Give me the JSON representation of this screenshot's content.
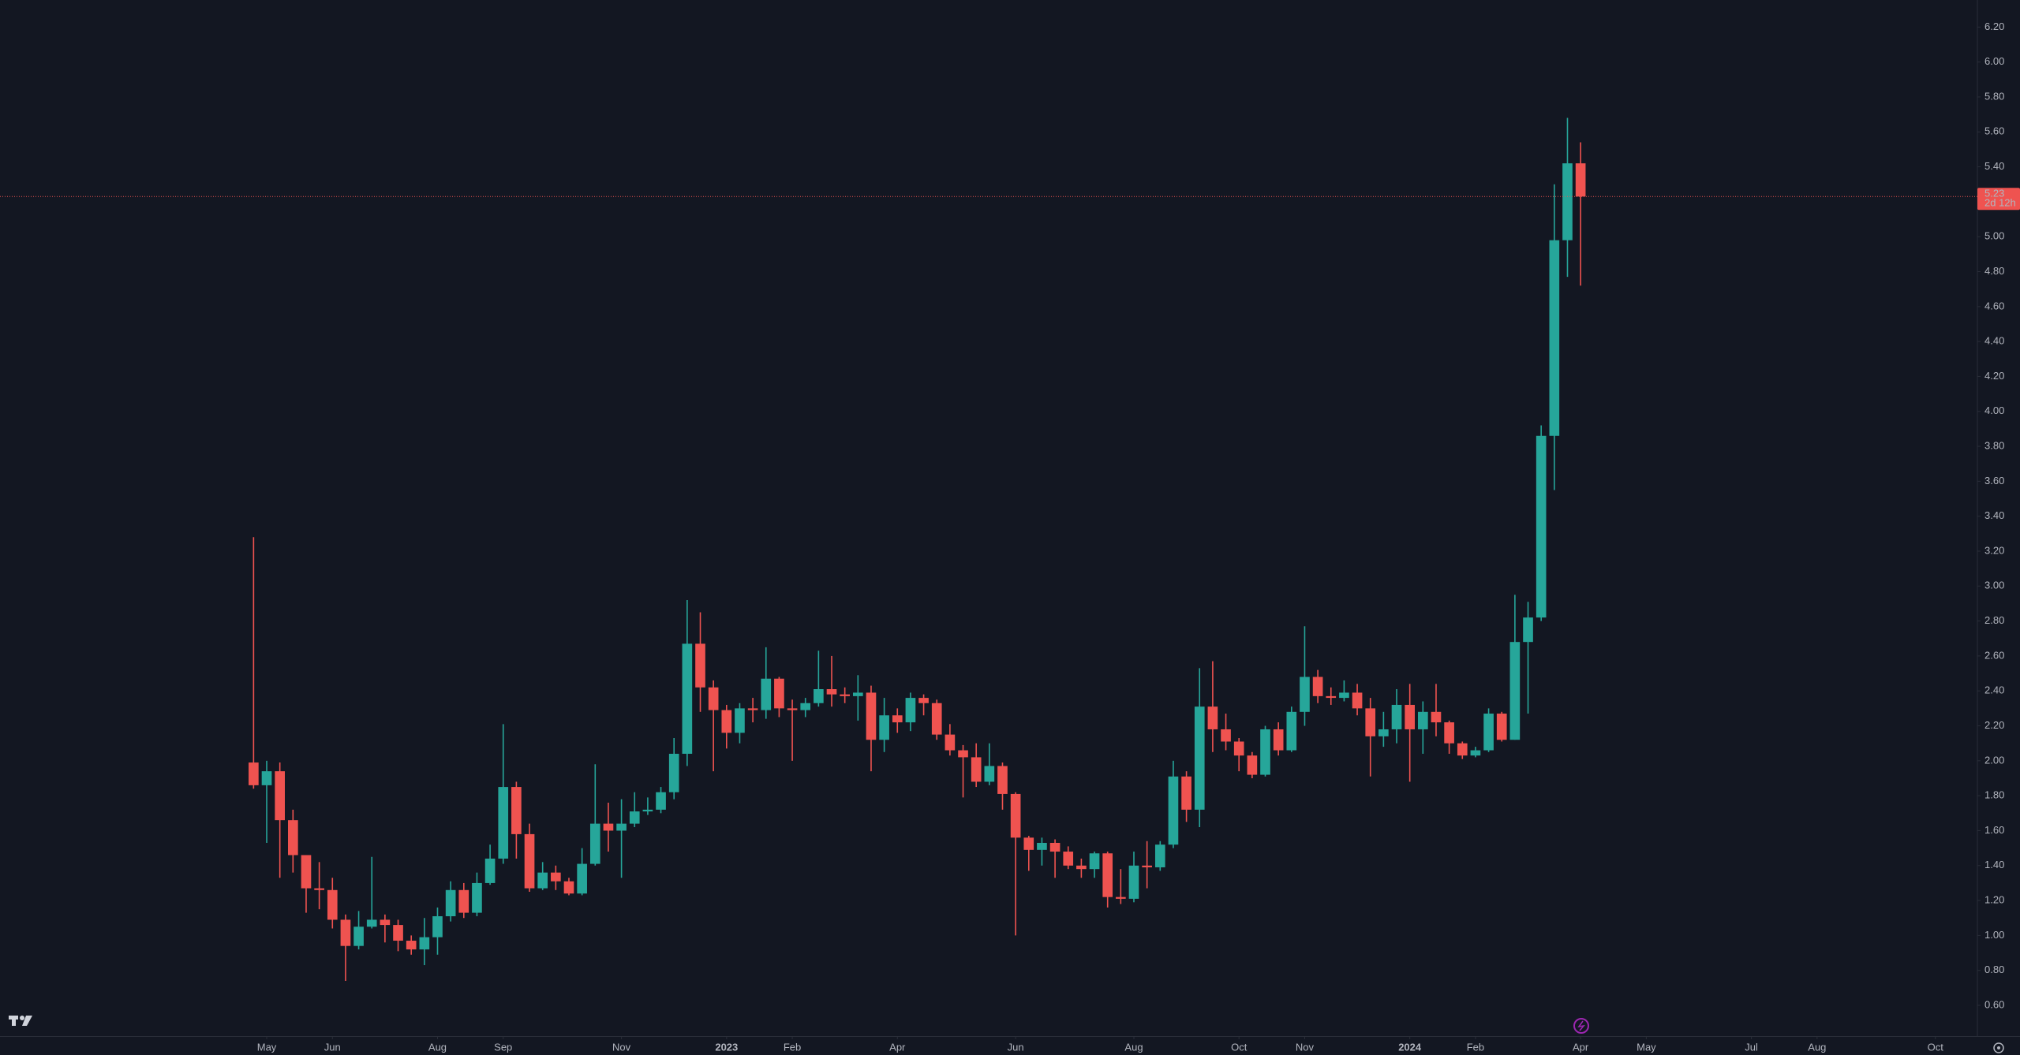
{
  "chart_data": {
    "type": "candlestick",
    "open": [
      1.99,
      1.86,
      1.94,
      1.66,
      1.46,
      1.27,
      1.26,
      1.09,
      0.94,
      1.05,
      1.09,
      1.06,
      0.97,
      0.92,
      0.99,
      1.11,
      1.26,
      1.13,
      1.3,
      1.44,
      1.85,
      1.58,
      1.27,
      1.36,
      1.31,
      1.24,
      1.41,
      1.64,
      1.6,
      1.64,
      1.71,
      1.72,
      1.82,
      2.04,
      2.67,
      2.42,
      2.29,
      2.16,
      2.3,
      2.29,
      2.47,
      2.3,
      2.29,
      2.33,
      2.41,
      2.38,
      2.37,
      2.39,
      2.12,
      2.26,
      2.22,
      2.36,
      2.33,
      2.15,
      2.06,
      2.02,
      1.88,
      1.97,
      1.81,
      1.56,
      1.49,
      1.53,
      1.48,
      1.4,
      1.38,
      1.47,
      1.22,
      1.21,
      1.4,
      1.39,
      1.52,
      1.91,
      1.72,
      2.31,
      2.18,
      2.11,
      2.03,
      1.92,
      2.18,
      2.06,
      2.28,
      2.48,
      2.37,
      2.36,
      2.39,
      2.3,
      2.14,
      2.18,
      2.32,
      2.18,
      2.28,
      2.22,
      2.1,
      2.03,
      2.06,
      2.27,
      2.12,
      2.68,
      2.82,
      3.86,
      4.98,
      5.42
    ],
    "high": [
      3.28,
      2.0,
      1.99,
      1.72,
      1.46,
      1.42,
      1.33,
      1.12,
      1.14,
      1.45,
      1.12,
      1.09,
      1.0,
      1.1,
      1.16,
      1.31,
      1.3,
      1.36,
      1.52,
      2.21,
      1.88,
      1.64,
      1.42,
      1.4,
      1.33,
      1.5,
      1.98,
      1.76,
      1.78,
      1.82,
      1.79,
      1.85,
      2.13,
      2.92,
      2.85,
      2.46,
      2.32,
      2.33,
      2.36,
      2.65,
      2.48,
      2.35,
      2.36,
      2.63,
      2.6,
      2.42,
      2.49,
      2.43,
      2.36,
      2.3,
      2.39,
      2.38,
      2.35,
      2.21,
      2.09,
      2.1,
      2.1,
      1.99,
      1.82,
      1.57,
      1.56,
      1.55,
      1.51,
      1.44,
      1.48,
      1.48,
      1.38,
      1.48,
      1.54,
      1.54,
      2.0,
      1.94,
      2.53,
      2.57,
      2.27,
      2.13,
      2.05,
      2.2,
      2.22,
      2.31,
      2.77,
      2.52,
      2.42,
      2.46,
      2.44,
      2.36,
      2.28,
      2.41,
      2.44,
      2.34,
      2.44,
      2.23,
      2.11,
      2.08,
      2.3,
      2.28,
      2.95,
      2.91,
      3.92,
      5.3,
      5.68,
      5.54
    ],
    "low": [
      1.84,
      1.53,
      1.33,
      1.36,
      1.13,
      1.15,
      1.04,
      0.74,
      0.92,
      1.04,
      0.96,
      0.91,
      0.89,
      0.83,
      0.89,
      1.08,
      1.1,
      1.11,
      1.29,
      1.41,
      1.44,
      1.25,
      1.26,
      1.26,
      1.23,
      1.23,
      1.4,
      1.48,
      1.33,
      1.62,
      1.69,
      1.7,
      1.78,
      1.97,
      2.28,
      1.94,
      2.07,
      2.1,
      2.22,
      2.24,
      2.25,
      2.0,
      2.25,
      2.31,
      2.31,
      2.33,
      2.23,
      1.94,
      2.05,
      2.16,
      2.17,
      2.26,
      2.12,
      2.03,
      1.79,
      1.85,
      1.86,
      1.72,
      1.0,
      1.37,
      1.4,
      1.33,
      1.38,
      1.33,
      1.33,
      1.16,
      1.18,
      1.19,
      1.27,
      1.37,
      1.5,
      1.65,
      1.62,
      2.05,
      2.06,
      1.94,
      1.9,
      1.91,
      2.03,
      2.05,
      2.2,
      2.33,
      2.32,
      2.34,
      2.26,
      1.91,
      2.08,
      2.1,
      1.88,
      2.04,
      2.14,
      2.04,
      2.01,
      2.02,
      2.05,
      2.11,
      2.12,
      2.27,
      2.8,
      3.55,
      4.77,
      4.72
    ],
    "close": [
      1.86,
      1.94,
      1.66,
      1.46,
      1.27,
      1.26,
      1.09,
      0.94,
      1.05,
      1.09,
      1.06,
      0.97,
      0.92,
      0.99,
      1.11,
      1.26,
      1.13,
      1.3,
      1.44,
      1.85,
      1.58,
      1.27,
      1.36,
      1.31,
      1.24,
      1.41,
      1.64,
      1.6,
      1.64,
      1.71,
      1.72,
      1.82,
      2.04,
      2.67,
      2.42,
      2.29,
      2.16,
      2.3,
      2.29,
      2.47,
      2.3,
      2.29,
      2.33,
      2.41,
      2.38,
      2.37,
      2.39,
      2.12,
      2.26,
      2.22,
      2.36,
      2.33,
      2.15,
      2.06,
      2.02,
      1.88,
      1.97,
      1.81,
      1.56,
      1.49,
      1.53,
      1.48,
      1.4,
      1.38,
      1.47,
      1.22,
      1.21,
      1.4,
      1.39,
      1.52,
      1.91,
      1.72,
      2.31,
      2.18,
      2.11,
      2.03,
      1.92,
      2.18,
      2.06,
      2.28,
      2.48,
      2.37,
      2.36,
      2.39,
      2.3,
      2.14,
      2.18,
      2.32,
      2.18,
      2.28,
      2.22,
      2.1,
      2.03,
      2.06,
      2.27,
      2.12,
      2.68,
      2.82,
      3.86,
      4.98,
      5.42,
      5.23
    ],
    "up_color": "#26a69a",
    "down_color": "#ef5350",
    "xlim": [
      -19.3,
      131.2
    ],
    "xticks": [
      {
        "value": 1,
        "label": "May"
      },
      {
        "value": 6,
        "label": "Jun"
      },
      {
        "value": 14,
        "label": "Aug"
      },
      {
        "value": 19,
        "label": "Sep"
      },
      {
        "value": 28,
        "label": "Nov"
      },
      {
        "value": 36,
        "label": "2023"
      },
      {
        "value": 41,
        "label": "Feb"
      },
      {
        "value": 49,
        "label": "Apr"
      },
      {
        "value": 58,
        "label": "Jun"
      },
      {
        "value": 67,
        "label": "Aug"
      },
      {
        "value": 75,
        "label": "Oct"
      },
      {
        "value": 80,
        "label": "Nov"
      },
      {
        "value": 88,
        "label": "2024"
      },
      {
        "value": 93,
        "label": "Feb"
      },
      {
        "value": 101,
        "label": "Apr"
      },
      {
        "value": 106,
        "label": "May"
      },
      {
        "value": 114,
        "label": "Jul"
      },
      {
        "value": 119,
        "label": "Aug"
      },
      {
        "value": 128,
        "label": "Oct"
      }
    ],
    "ylim": [
      0.424,
      6.355
    ],
    "yticks": [
      {
        "value": 0.6,
        "label": "0.60"
      },
      {
        "value": 0.8,
        "label": "0.80"
      },
      {
        "value": 1,
        "label": "1.00"
      },
      {
        "value": 1.2,
        "label": "1.20"
      },
      {
        "value": 1.4,
        "label": "1.40"
      },
      {
        "value": 1.6,
        "label": "1.60"
      },
      {
        "value": 1.8,
        "label": "1.80"
      },
      {
        "value": 2,
        "label": "2.00"
      },
      {
        "value": 2.2,
        "label": "2.20"
      },
      {
        "value": 2.4,
        "label": "2.40"
      },
      {
        "value": 2.6,
        "label": "2.60"
      },
      {
        "value": 2.8,
        "label": "2.80"
      },
      {
        "value": 3,
        "label": "3.00"
      },
      {
        "value": 3.2,
        "label": "3.20"
      },
      {
        "value": 3.4,
        "label": "3.40"
      },
      {
        "value": 3.6,
        "label": "3.60"
      },
      {
        "value": 3.8,
        "label": "3.80"
      },
      {
        "value": 4,
        "label": "4.00"
      },
      {
        "value": 4.2,
        "label": "4.20"
      },
      {
        "value": 4.4,
        "label": "4.40"
      },
      {
        "value": 4.6,
        "label": "4.60"
      },
      {
        "value": 4.8,
        "label": "4.80"
      },
      {
        "value": 5,
        "label": "5.00"
      },
      {
        "value": 5.2,
        "label": "5.20"
      },
      {
        "value": 5.4,
        "label": "5.40"
      },
      {
        "value": 5.6,
        "label": "5.60"
      },
      {
        "value": 5.8,
        "label": "5.80"
      },
      {
        "value": 6,
        "label": "6.00"
      },
      {
        "value": 6.2,
        "label": "6.20"
      }
    ],
    "last_price": {
      "value": 5.23,
      "label": "5.23"
    },
    "countdown": "2d 12h"
  }
}
